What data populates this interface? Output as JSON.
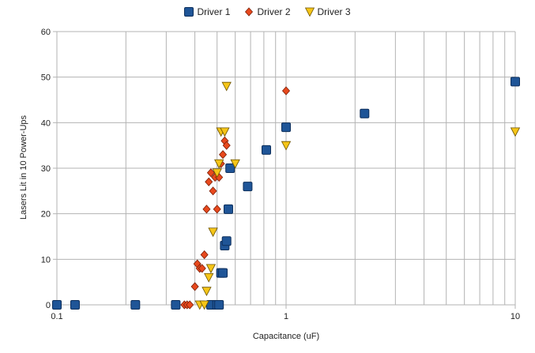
{
  "chart_data": {
    "type": "scatter",
    "title": "",
    "xlabel": "Capacitance (uF)",
    "ylabel": "Lasers Lit in 10 Power-Ups",
    "xscale": "log",
    "xlim": [
      0.1,
      10
    ],
    "ylim": [
      0,
      60
    ],
    "xticks": [
      "0.1",
      "1",
      "10"
    ],
    "yticks": [
      "0",
      "10",
      "20",
      "30",
      "40",
      "50",
      "60"
    ],
    "grid": true,
    "legend_position": "top-center",
    "series": [
      {
        "name": "Driver 1",
        "marker": "square",
        "color": "#1f5597",
        "points": [
          [
            0.1,
            0
          ],
          [
            0.12,
            0
          ],
          [
            0.22,
            0
          ],
          [
            0.33,
            0
          ],
          [
            0.47,
            0
          ],
          [
            0.5,
            0
          ],
          [
            0.51,
            0
          ],
          [
            0.52,
            7
          ],
          [
            0.53,
            7
          ],
          [
            0.54,
            13
          ],
          [
            0.55,
            14
          ],
          [
            0.56,
            21
          ],
          [
            0.57,
            30
          ],
          [
            0.68,
            26
          ],
          [
            0.82,
            34
          ],
          [
            1.0,
            39
          ],
          [
            2.2,
            42
          ],
          [
            10.0,
            49
          ]
        ]
      },
      {
        "name": "Driver 2",
        "marker": "diamond",
        "color": "#e8491d",
        "points": [
          [
            0.36,
            0
          ],
          [
            0.37,
            0
          ],
          [
            0.38,
            0
          ],
          [
            0.4,
            4
          ],
          [
            0.41,
            9
          ],
          [
            0.42,
            8
          ],
          [
            0.43,
            8
          ],
          [
            0.44,
            11
          ],
          [
            0.45,
            21
          ],
          [
            0.46,
            27
          ],
          [
            0.47,
            29
          ],
          [
            0.48,
            25
          ],
          [
            0.49,
            28
          ],
          [
            0.5,
            21
          ],
          [
            0.51,
            28
          ],
          [
            0.52,
            31
          ],
          [
            0.53,
            33
          ],
          [
            0.54,
            36
          ],
          [
            0.55,
            35
          ],
          [
            1.0,
            47
          ]
        ]
      },
      {
        "name": "Driver 3",
        "marker": "triangle-down",
        "color": "#f5c518",
        "points": [
          [
            0.42,
            0
          ],
          [
            0.44,
            0
          ],
          [
            0.45,
            3
          ],
          [
            0.46,
            6
          ],
          [
            0.47,
            8
          ],
          [
            0.48,
            16
          ],
          [
            0.5,
            29
          ],
          [
            0.51,
            31
          ],
          [
            0.52,
            38
          ],
          [
            0.54,
            38
          ],
          [
            0.55,
            48
          ],
          [
            0.6,
            31
          ],
          [
            1.0,
            35
          ],
          [
            10.0,
            38
          ]
        ]
      }
    ]
  }
}
